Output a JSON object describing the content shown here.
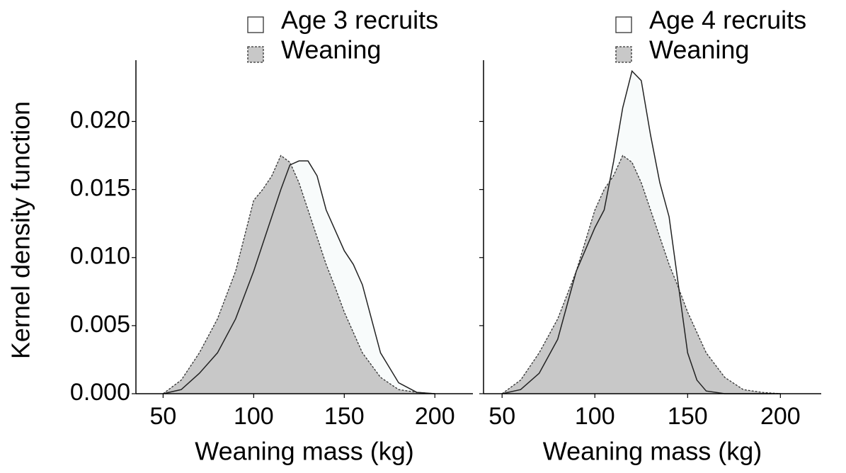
{
  "chart_data": [
    {
      "type": "area",
      "ylabel": "Kernel density function",
      "xlabel": "Weaning mass (kg)",
      "x": [
        50,
        60,
        70,
        80,
        90,
        100,
        105,
        110,
        115,
        120,
        125,
        130,
        135,
        140,
        145,
        150,
        155,
        160,
        170,
        180,
        190,
        200
      ],
      "series": [
        {
          "name": "Age 3 recruits",
          "color": "#f8fbfb",
          "linestyle": "solid",
          "values": [
            0,
            0.0003,
            0.0015,
            0.003,
            0.0055,
            0.009,
            0.011,
            0.013,
            0.015,
            0.0168,
            0.0171,
            0.0171,
            0.016,
            0.0135,
            0.012,
            0.0105,
            0.0095,
            0.008,
            0.003,
            0.0008,
            0.0001,
            0
          ]
        },
        {
          "name": "Weaning",
          "color": "#c8c8c8",
          "linestyle": "dashed",
          "values": [
            0,
            0.001,
            0.003,
            0.0055,
            0.009,
            0.0142,
            0.015,
            0.016,
            0.0175,
            0.017,
            0.0155,
            0.0135,
            0.0115,
            0.0095,
            0.0078,
            0.006,
            0.0045,
            0.003,
            0.0012,
            0.0003,
            0.0001,
            0
          ]
        }
      ],
      "xlim": [
        35,
        221
      ],
      "xticks": [
        50,
        100,
        150,
        200
      ],
      "ylim": [
        0,
        0.0245
      ],
      "yticks": [
        {
          "value": 0,
          "label": "0.000"
        },
        {
          "value": 0.005,
          "label": "0.005"
        },
        {
          "value": 0.01,
          "label": "0.010"
        },
        {
          "value": 0.015,
          "label": "0.015"
        },
        {
          "value": 0.02,
          "label": "0.020"
        }
      ],
      "legend": "top"
    },
    {
      "type": "area",
      "xlabel": "Weaning mass (kg)",
      "x": [
        50,
        60,
        70,
        80,
        90,
        100,
        105,
        110,
        115,
        120,
        125,
        130,
        135,
        140,
        145,
        150,
        155,
        160,
        170,
        180,
        190,
        200
      ],
      "series": [
        {
          "name": "Age 4 recruits",
          "color": "#f8fbfb",
          "linestyle": "solid",
          "values": [
            0,
            0.0003,
            0.0015,
            0.004,
            0.009,
            0.0122,
            0.0135,
            0.017,
            0.021,
            0.0237,
            0.023,
            0.019,
            0.0155,
            0.013,
            0.008,
            0.003,
            0.001,
            0.0002,
            0,
            0,
            0,
            0
          ]
        },
        {
          "name": "Weaning",
          "color": "#c8c8c8",
          "linestyle": "dashed",
          "values": [
            0,
            0.001,
            0.003,
            0.0055,
            0.009,
            0.0135,
            0.015,
            0.016,
            0.0175,
            0.017,
            0.0155,
            0.0135,
            0.0115,
            0.0095,
            0.0078,
            0.006,
            0.0045,
            0.003,
            0.0012,
            0.0003,
            0.0001,
            0
          ]
        }
      ],
      "xlim": [
        40,
        222
      ],
      "xticks": [
        50,
        100,
        150,
        200
      ],
      "ylim": [
        0,
        0.0245
      ],
      "yticks": [
        0,
        0.005,
        0.01,
        0.015,
        0.02
      ],
      "legend": "top"
    }
  ]
}
